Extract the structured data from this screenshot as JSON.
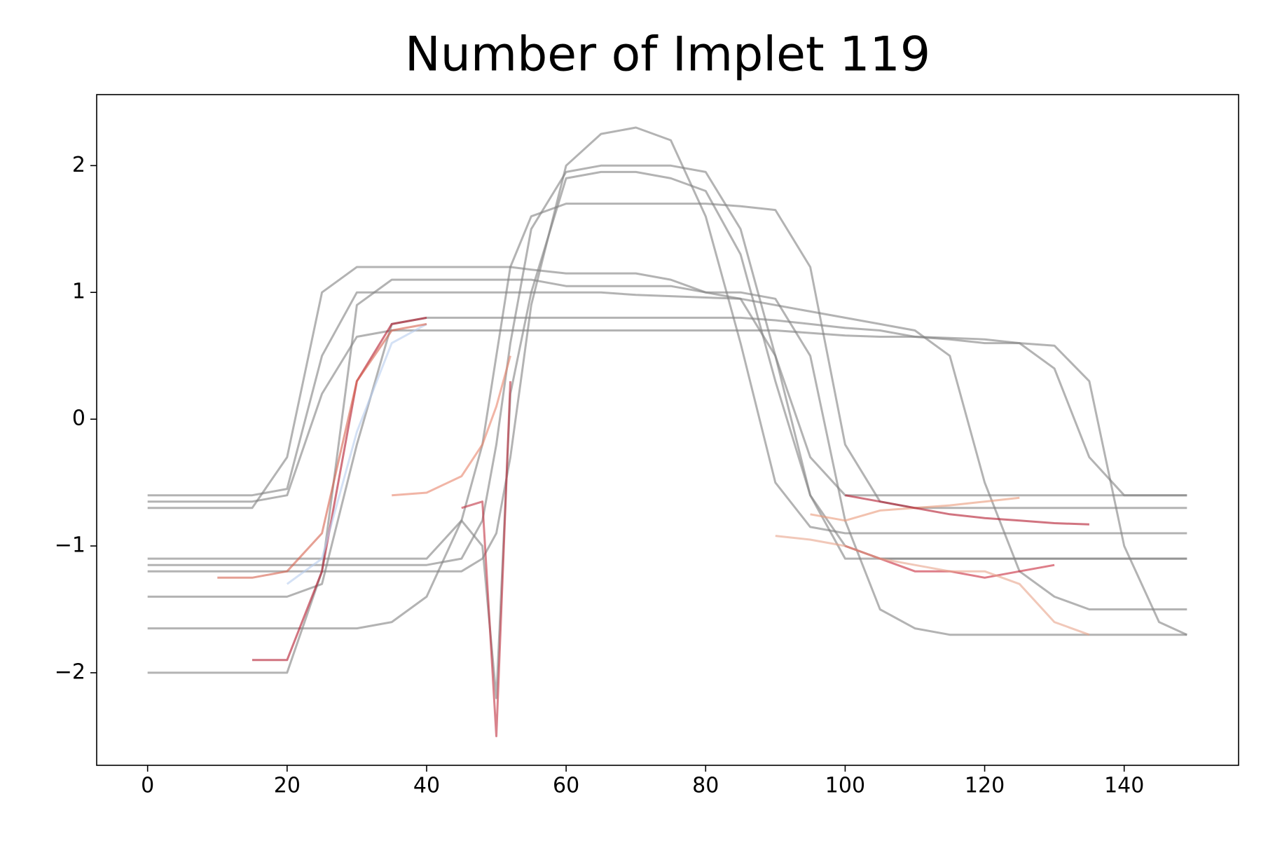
{
  "chart_data": {
    "type": "line",
    "title": "Number of Implet 119",
    "x": [
      0,
      5,
      10,
      15,
      20,
      25,
      30,
      35,
      40,
      45,
      48,
      50,
      52,
      55,
      60,
      65,
      70,
      75,
      80,
      85,
      90,
      95,
      100,
      105,
      110,
      115,
      120,
      125,
      130,
      135,
      140,
      145,
      149
    ],
    "xlim": [
      -7.3,
      156.4
    ],
    "ylim": [
      -2.73,
      2.56
    ],
    "xticks": [
      0,
      20,
      40,
      60,
      80,
      100,
      120,
      140
    ],
    "yticks": [
      {
        "value": -2,
        "label": "−2"
      },
      {
        "value": -1,
        "label": "−1"
      },
      0,
      1,
      2
    ],
    "alpha": 0.6,
    "series": [
      {
        "color": "#808080",
        "values": [
          -0.6,
          -0.6,
          -0.6,
          -0.6,
          -0.55,
          0.5,
          1.0,
          1.0,
          1.0,
          1.0,
          1.0,
          1.0,
          1.0,
          1.0,
          1.0,
          1.0,
          0.98,
          0.97,
          0.96,
          0.95,
          0.5,
          -0.3,
          -0.6,
          -0.6,
          -0.6,
          -0.6,
          -0.6,
          -0.6,
          -0.6,
          -0.6,
          -0.6,
          -0.6,
          -0.6
        ]
      },
      {
        "color": "#808080",
        "values": [
          -1.15,
          -1.15,
          -1.15,
          -1.15,
          -1.15,
          -1.15,
          -1.15,
          -1.15,
          -1.15,
          -1.1,
          -0.8,
          -0.2,
          0.6,
          1.5,
          1.95,
          2.0,
          2.0,
          2.0,
          1.95,
          1.5,
          0.5,
          -0.6,
          -1.0,
          -1.1,
          -1.1,
          -1.1,
          -1.1,
          -1.1,
          -1.1,
          -1.1,
          -1.1,
          -1.1,
          -1.1
        ]
      },
      {
        "color": "#808080",
        "values": [
          -0.65,
          -0.65,
          -0.65,
          -0.65,
          -0.6,
          0.2,
          0.65,
          0.7,
          0.7,
          0.7,
          0.7,
          0.7,
          0.7,
          0.7,
          0.7,
          0.7,
          0.7,
          0.7,
          0.7,
          0.7,
          0.7,
          0.68,
          0.66,
          0.65,
          0.65,
          0.64,
          0.63,
          0.6,
          0.4,
          -0.3,
          -0.6,
          -0.6,
          -0.6
        ]
      },
      {
        "color": "#808080",
        "values": [
          -1.2,
          -1.2,
          -1.2,
          -1.2,
          -1.2,
          -1.2,
          -1.2,
          -1.2,
          -1.2,
          -1.2,
          -1.1,
          -0.9,
          -0.3,
          0.9,
          2.0,
          2.25,
          2.3,
          2.2,
          1.6,
          0.6,
          -0.5,
          -0.85,
          -0.9,
          -0.9,
          -0.9,
          -0.9,
          -0.9,
          -0.9,
          -0.9,
          -0.9,
          -0.9,
          -0.9,
          -0.9
        ]
      },
      {
        "color": "#808080",
        "values": [
          -2.0,
          -2.0,
          -2.0,
          -2.0,
          -2.0,
          -1.2,
          0.9,
          1.1,
          1.1,
          1.1,
          1.1,
          1.1,
          1.1,
          1.1,
          1.05,
          1.05,
          1.05,
          1.05,
          1.0,
          1.0,
          0.95,
          0.5,
          -0.8,
          -1.5,
          -1.65,
          -1.7,
          -1.7,
          -1.7,
          -1.7,
          -1.7,
          -1.7,
          -1.7,
          -1.7
        ]
      },
      {
        "color": "#808080",
        "values": [
          -0.7,
          -0.7,
          -0.7,
          -0.7,
          -0.3,
          1.0,
          1.2,
          1.2,
          1.2,
          1.2,
          1.2,
          1.2,
          1.2,
          1.18,
          1.15,
          1.15,
          1.15,
          1.1,
          1.0,
          0.95,
          0.9,
          0.85,
          0.8,
          0.75,
          0.7,
          0.5,
          -0.5,
          -1.2,
          -1.4,
          -1.5,
          -1.5,
          -1.5,
          -1.5
        ]
      },
      {
        "color": "#808080",
        "values": [
          -1.65,
          -1.65,
          -1.65,
          -1.65,
          -1.65,
          -1.65,
          -1.65,
          -1.6,
          -1.4,
          -0.8,
          -0.2,
          0.5,
          1.2,
          1.6,
          1.7,
          1.7,
          1.7,
          1.7,
          1.7,
          1.68,
          1.65,
          1.2,
          -0.2,
          -0.65,
          -0.7,
          -0.7,
          -0.7,
          -0.7,
          -0.7,
          -0.7,
          -0.7,
          -0.7,
          -0.7
        ]
      },
      {
        "color": "#808080",
        "values": [
          -1.4,
          -1.4,
          -1.4,
          -1.4,
          -1.4,
          -1.3,
          -0.2,
          0.75,
          0.8,
          0.8,
          0.8,
          0.8,
          0.8,
          0.8,
          0.8,
          0.8,
          0.8,
          0.8,
          0.8,
          0.8,
          0.78,
          0.75,
          0.72,
          0.7,
          0.65,
          0.63,
          0.6,
          0.6,
          0.58,
          0.3,
          -1.0,
          -1.6,
          -1.7
        ]
      },
      {
        "color": "#808080",
        "values": [
          -1.1,
          -1.1,
          -1.1,
          -1.1,
          -1.1,
          -1.1,
          -1.1,
          -1.1,
          -1.1,
          -0.8,
          -1.0,
          -2.2,
          0.2,
          1.0,
          1.9,
          1.95,
          1.95,
          1.9,
          1.8,
          1.3,
          0.3,
          -0.6,
          -1.1,
          -1.1,
          -1.1,
          -1.1,
          -1.1,
          -1.1,
          -1.1,
          -1.1,
          -1.1,
          -1.1,
          -1.1
        ]
      },
      {
        "color": "#b2182b",
        "values": [
          null,
          null,
          null,
          -1.9,
          -1.9,
          -1.2,
          0.3,
          0.75,
          0.8,
          null,
          null,
          null,
          null,
          null,
          null,
          null,
          null,
          null,
          null,
          null,
          null,
          null,
          null,
          null,
          null,
          null,
          null,
          null,
          null,
          null,
          null,
          null,
          null
        ]
      },
      {
        "color": "#e8836b",
        "values": [
          null,
          null,
          null,
          null,
          null,
          null,
          null,
          -0.6,
          -0.58,
          -0.45,
          -0.2,
          0.1,
          0.5,
          null,
          null,
          null,
          null,
          null,
          null,
          null,
          null,
          null,
          null,
          null,
          null,
          null,
          null,
          null,
          null,
          null,
          null,
          null,
          null
        ]
      },
      {
        "color": "#c0303f",
        "values": [
          null,
          null,
          null,
          null,
          null,
          null,
          null,
          null,
          null,
          -0.7,
          -0.65,
          -2.5,
          0.3,
          null,
          null,
          null,
          null,
          null,
          null,
          null,
          null,
          null,
          null,
          null,
          null,
          null,
          null,
          null,
          null,
          null,
          null,
          null,
          null
        ]
      },
      {
        "color": "#c8283a",
        "values": [
          null,
          null,
          null,
          null,
          null,
          null,
          null,
          null,
          null,
          null,
          null,
          null,
          null,
          null,
          null,
          null,
          null,
          null,
          null,
          null,
          null,
          null,
          -1.0,
          -1.1,
          -1.2,
          -1.2,
          -1.25,
          -1.2,
          -1.15,
          null,
          null,
          null,
          null
        ]
      },
      {
        "color": "#e99a7a",
        "values": [
          null,
          null,
          null,
          null,
          null,
          null,
          null,
          null,
          null,
          null,
          null,
          null,
          null,
          null,
          null,
          null,
          null,
          null,
          null,
          null,
          null,
          -0.75,
          -0.8,
          -0.72,
          -0.7,
          -0.68,
          -0.65,
          -0.62,
          null,
          null,
          null,
          null,
          null
        ]
      },
      {
        "color": "#b2182b",
        "values": [
          null,
          null,
          null,
          null,
          null,
          null,
          null,
          null,
          null,
          null,
          null,
          null,
          null,
          null,
          null,
          null,
          null,
          null,
          null,
          null,
          null,
          null,
          -0.6,
          -0.65,
          -0.7,
          -0.75,
          -0.78,
          -0.8,
          -0.82,
          -0.83,
          null,
          null,
          null
        ]
      },
      {
        "color": "#b8cdef",
        "values": [
          null,
          null,
          null,
          null,
          -1.3,
          -1.1,
          -0.1,
          0.6,
          0.75,
          null,
          null,
          null,
          null,
          null,
          null,
          null,
          null,
          null,
          null,
          null,
          null,
          null,
          null,
          null,
          null,
          null,
          null,
          null,
          null,
          null,
          null,
          null,
          null
        ]
      },
      {
        "color": "#e8a48a",
        "values": [
          null,
          null,
          null,
          null,
          null,
          null,
          null,
          null,
          null,
          null,
          null,
          null,
          null,
          null,
          null,
          null,
          null,
          null,
          null,
          null,
          -0.92,
          -0.95,
          -1.0,
          -1.1,
          -1.15,
          -1.2,
          -1.2,
          -1.3,
          -1.6,
          -1.7,
          null,
          null,
          null
        ]
      },
      {
        "color": "#d6604d",
        "values": [
          null,
          null,
          -1.25,
          -1.25,
          -1.2,
          -0.9,
          0.3,
          0.7,
          0.75,
          null,
          null,
          null,
          null,
          null,
          null,
          null,
          null,
          null,
          null,
          null,
          null,
          null,
          null,
          null,
          null,
          null,
          null,
          null,
          null,
          null,
          null,
          null,
          null
        ]
      }
    ]
  }
}
